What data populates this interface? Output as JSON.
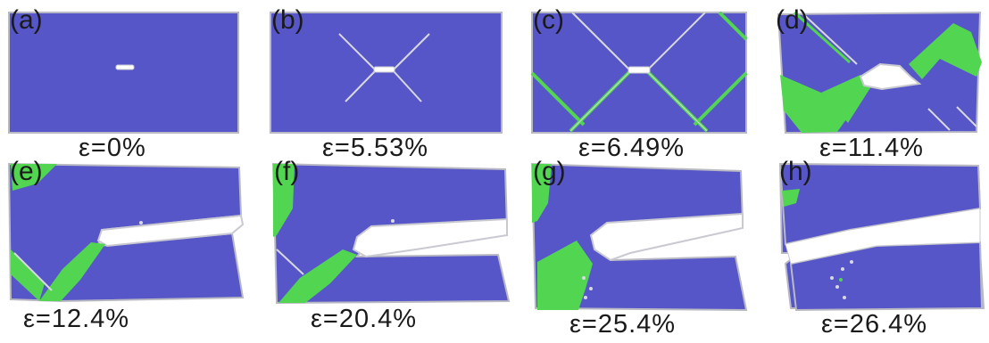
{
  "colors": {
    "matrix": "#5656c8",
    "phase": "#52d652",
    "void": "#ffffff",
    "edge": "#b9b9c4"
  },
  "panels": [
    {
      "label": "(a)",
      "strain": "ε=0%"
    },
    {
      "label": "(b)",
      "strain": "ε=5.53%"
    },
    {
      "label": "(c)",
      "strain": "ε=6.49%"
    },
    {
      "label": "(d)",
      "strain": "ε=11.4%"
    },
    {
      "label": "(e)",
      "strain": "ε=12.4%"
    },
    {
      "label": "(f)",
      "strain": "ε=20.4%"
    },
    {
      "label": "(g)",
      "strain": "ε=25.4%"
    },
    {
      "label": "(h)",
      "strain": "ε=26.4%"
    }
  ]
}
